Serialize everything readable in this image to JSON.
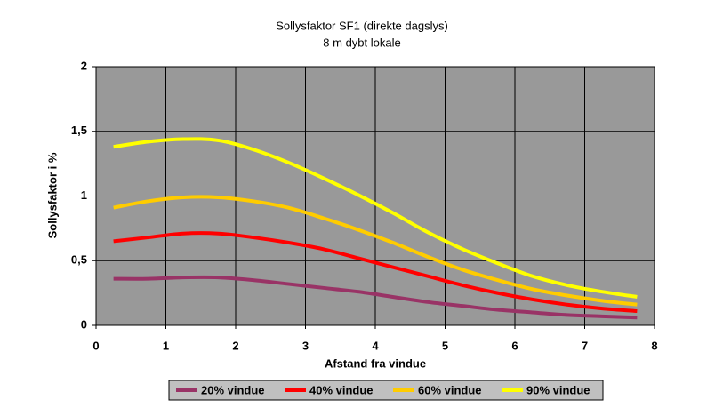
{
  "chart_data": {
    "type": "line",
    "title": "Sollysfaktor SF1 (direkte dagslys)",
    "subtitle": "8 m dybt lokale",
    "x_label": "Afstand fra vindue",
    "y_label": "Sollysfaktor i %",
    "x": [
      0.25,
      0.75,
      1.25,
      1.75,
      2.25,
      2.75,
      3.25,
      3.75,
      4.25,
      4.75,
      5.25,
      5.75,
      6.25,
      6.75,
      7.25,
      7.75
    ],
    "series": [
      {
        "name": "20% vindue",
        "color": "#993366",
        "values": [
          0.36,
          0.36,
          0.37,
          0.37,
          0.35,
          0.32,
          0.29,
          0.26,
          0.22,
          0.18,
          0.15,
          0.12,
          0.1,
          0.08,
          0.07,
          0.06
        ]
      },
      {
        "name": "40% vindue",
        "color": "#ff0000",
        "values": [
          0.65,
          0.68,
          0.71,
          0.71,
          0.68,
          0.64,
          0.59,
          0.52,
          0.45,
          0.38,
          0.31,
          0.25,
          0.2,
          0.16,
          0.13,
          0.11
        ]
      },
      {
        "name": "60% vindue",
        "color": "#ffcc00",
        "values": [
          0.91,
          0.96,
          0.99,
          0.99,
          0.96,
          0.91,
          0.83,
          0.74,
          0.64,
          0.53,
          0.43,
          0.35,
          0.28,
          0.23,
          0.19,
          0.16
        ]
      },
      {
        "name": "90% vindue",
        "color": "#ffff00",
        "values": [
          1.38,
          1.42,
          1.44,
          1.43,
          1.36,
          1.26,
          1.14,
          1.01,
          0.87,
          0.72,
          0.59,
          0.48,
          0.38,
          0.31,
          0.26,
          0.22
        ]
      }
    ],
    "xlim": [
      0,
      8
    ],
    "xticks": [
      0,
      1,
      2,
      3,
      4,
      5,
      6,
      7,
      8
    ],
    "ylim": [
      0,
      2
    ],
    "yticks": [
      0,
      {
        "value": 0.5,
        "label": "0,5"
      },
      1,
      {
        "value": 1.5,
        "label": "1,5"
      },
      2
    ],
    "grid": true,
    "legend": "bottom",
    "plot_background": "#999999"
  }
}
